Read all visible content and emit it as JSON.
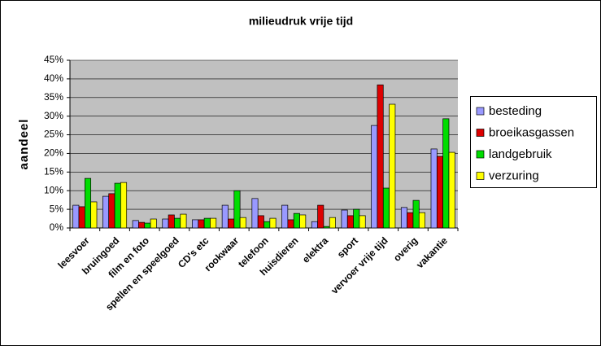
{
  "chart_data": {
    "type": "bar",
    "title": "milieudruk vrije tijd",
    "y_label": "aandeel",
    "categories": [
      "leesvoer",
      "bruingoed",
      "film en foto",
      "spellen en speelgoed",
      "CD's etc",
      "rookwaar",
      "telefoon",
      "huisdieren",
      "elektra",
      "sport",
      "vervoer vrije tijd",
      "overig",
      "vakantie"
    ],
    "series": [
      {
        "name": "besteding",
        "color": "#9999ff",
        "values": [
          6.1,
          8.5,
          2,
          2.4,
          2.2,
          6.1,
          7.9,
          6.1,
          1.7,
          4.8,
          27.5,
          5.5,
          21.2
        ]
      },
      {
        "name": "broeikasgassen",
        "color": "#dd0000",
        "values": [
          5.7,
          9.2,
          1.5,
          3.5,
          2.2,
          2.4,
          3.3,
          2.2,
          6.1,
          3.3,
          38.4,
          4.1,
          19.2
        ]
      },
      {
        "name": "landgebruik",
        "color": "#00dd00",
        "values": [
          13.3,
          12,
          1.3,
          2.6,
          2.6,
          10,
          1.7,
          3.9,
          0.4,
          5,
          10.7,
          7.4,
          29.3
        ]
      },
      {
        "name": "verzuring",
        "color": "#ffff00",
        "values": [
          7,
          12.2,
          2.4,
          3.7,
          2.6,
          2.8,
          2.6,
          3.5,
          2.8,
          3.3,
          33.2,
          4.1,
          20.3
        ]
      }
    ],
    "ylim": [
      0,
      45
    ],
    "yticks": [
      {
        "value": 0,
        "label": "0%"
      },
      {
        "value": 5,
        "label": "5%"
      },
      {
        "value": 10,
        "label": "10%"
      },
      {
        "value": 15,
        "label": "15%"
      },
      {
        "value": 20,
        "label": "20%"
      },
      {
        "value": 25,
        "label": "25%"
      },
      {
        "value": 30,
        "label": "30%"
      },
      {
        "value": 35,
        "label": "35%"
      },
      {
        "value": 40,
        "label": "40%"
      },
      {
        "value": 45,
        "label": "45%"
      }
    ],
    "grid": true,
    "legend": "right"
  }
}
